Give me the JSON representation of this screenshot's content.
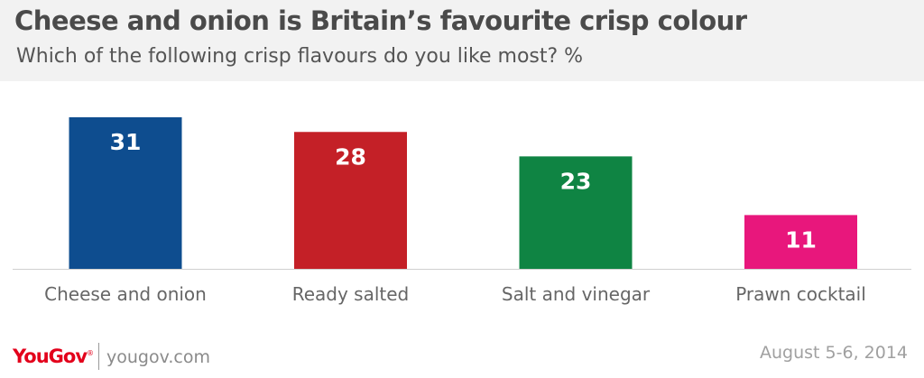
{
  "header": {
    "title": "Cheese and onion is Britain’s favourite crisp colour",
    "subtitle": "Which of the following crisp flavours do you like most? %"
  },
  "chart_data": {
    "type": "bar",
    "title": "Cheese and onion is Britain’s favourite crisp colour",
    "subtitle": "Which of the following crisp flavours do you like most? %",
    "categories": [
      "Cheese and onion",
      "Ready salted",
      "Salt and vinegar",
      "Prawn cocktail"
    ],
    "values": [
      31,
      28,
      23,
      11
    ],
    "colors": [
      "#0e4d8f",
      "#c42027",
      "#0f8443",
      "#e8177c"
    ],
    "data_labels": [
      "31",
      "28",
      "23",
      "11"
    ],
    "xlabel": "",
    "ylabel": "",
    "ylim": [
      0,
      31
    ],
    "grid": false,
    "legend": "none"
  },
  "footer": {
    "logo": "YouGov",
    "logo_mark": "®",
    "url": "yougov.com",
    "date": "August 5-6, 2014"
  }
}
